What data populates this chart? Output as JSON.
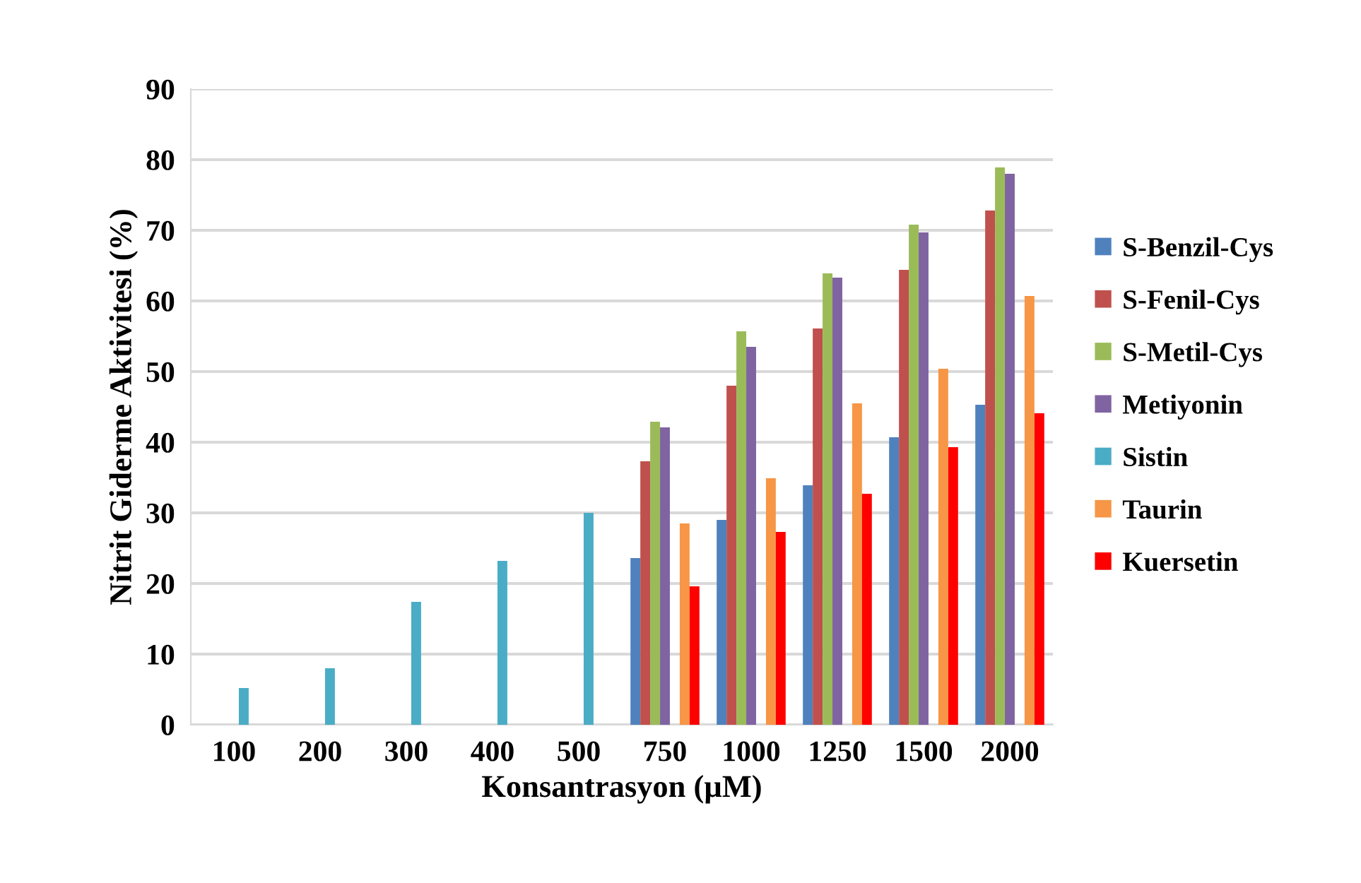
{
  "chart_data": {
    "type": "bar",
    "xlabel": "Konsantrasyon (µM)",
    "ylabel": "Nitrit Giderme Aktivitesi (%)",
    "categories": [
      "100",
      "200",
      "300",
      "400",
      "500",
      "750",
      "1000",
      "1250",
      "1500",
      "2000"
    ],
    "series": [
      {
        "name": "S-Benzil-Cys",
        "color": "#4f81bd",
        "values": [
          null,
          null,
          null,
          null,
          null,
          23.6,
          29.0,
          33.9,
          40.7,
          45.3
        ]
      },
      {
        "name": "S-Fenil-Cys",
        "color": "#c0504d",
        "values": [
          null,
          null,
          null,
          null,
          null,
          37.3,
          48.0,
          56.1,
          64.4,
          72.8
        ]
      },
      {
        "name": "S-Metil-Cys",
        "color": "#9bbb59",
        "values": [
          null,
          null,
          null,
          null,
          null,
          42.9,
          55.7,
          63.9,
          70.8,
          78.9
        ]
      },
      {
        "name": "Metiyonin",
        "color": "#8064a2",
        "values": [
          null,
          null,
          null,
          null,
          null,
          42.1,
          53.5,
          63.3,
          69.7,
          78.0
        ]
      },
      {
        "name": "Sistin",
        "color": "#4bacc6",
        "values": [
          5.2,
          8.0,
          17.4,
          23.2,
          30.0,
          null,
          null,
          null,
          null,
          null
        ]
      },
      {
        "name": "Taurin",
        "color": "#f79646",
        "values": [
          null,
          null,
          null,
          null,
          null,
          28.5,
          34.9,
          45.5,
          50.4,
          60.7
        ]
      },
      {
        "name": "Kuersetin",
        "color": "#ff0000",
        "values": [
          null,
          null,
          null,
          null,
          null,
          19.6,
          27.3,
          32.7,
          39.3,
          44.1
        ]
      }
    ],
    "ylim": [
      0,
      90
    ],
    "yticks": [
      0,
      10,
      20,
      30,
      40,
      50,
      60,
      70,
      80,
      90
    ],
    "grid": "y",
    "legend": "right"
  }
}
